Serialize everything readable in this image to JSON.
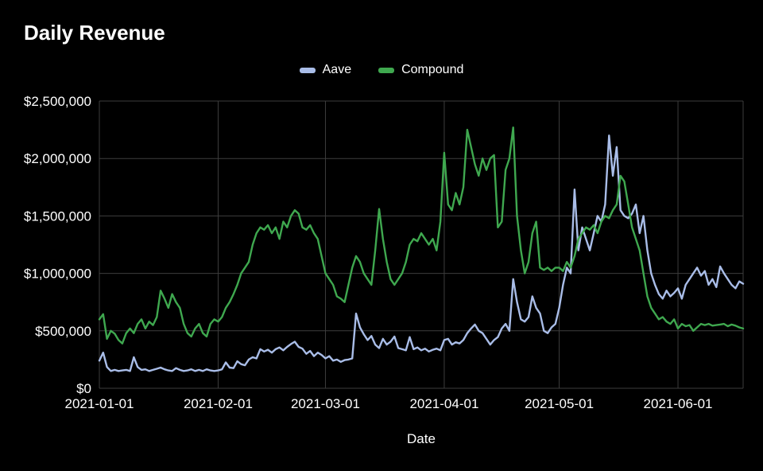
{
  "page": {
    "background": "#000000",
    "text_color": "#ffffff",
    "grid_color": "#3d3d3d"
  },
  "header": {
    "title": "Daily Revenue"
  },
  "axis": {
    "x_title": "Date"
  },
  "chart_data": {
    "type": "line",
    "title": "Daily Revenue",
    "xlabel": "Date",
    "ylabel": "",
    "start_date": "2021-01-01",
    "frequency": "daily",
    "ylim": [
      0,
      2500000
    ],
    "grid": true,
    "legend_position": "top-center",
    "y_ticks": [
      0,
      500000,
      1000000,
      1500000,
      2000000,
      2500000
    ],
    "y_tick_labels": [
      "$0",
      "$500,000",
      "$1,000,000",
      "$1,500,000",
      "$2,000,000",
      "$2,500,000"
    ],
    "x_ticks": [
      "2021-01-01",
      "2021-02-01",
      "2021-03-01",
      "2021-04-01",
      "2021-05-01",
      "2021-06-01"
    ],
    "series": [
      {
        "name": "Aave",
        "color": "#a9bde8",
        "values": [
          240000,
          310000,
          185000,
          150000,
          160000,
          150000,
          155000,
          160000,
          150000,
          270000,
          185000,
          160000,
          165000,
          150000,
          160000,
          170000,
          180000,
          165000,
          155000,
          150000,
          175000,
          160000,
          150000,
          155000,
          165000,
          150000,
          160000,
          150000,
          165000,
          155000,
          150000,
          155000,
          165000,
          225000,
          180000,
          175000,
          235000,
          210000,
          200000,
          250000,
          270000,
          260000,
          340000,
          320000,
          335000,
          310000,
          340000,
          355000,
          330000,
          360000,
          385000,
          405000,
          360000,
          345000,
          300000,
          325000,
          280000,
          310000,
          290000,
          260000,
          280000,
          240000,
          250000,
          230000,
          245000,
          250000,
          260000,
          650000,
          530000,
          470000,
          420000,
          455000,
          380000,
          350000,
          430000,
          380000,
          405000,
          450000,
          350000,
          340000,
          330000,
          445000,
          340000,
          355000,
          330000,
          345000,
          320000,
          335000,
          345000,
          330000,
          420000,
          430000,
          380000,
          400000,
          390000,
          420000,
          480000,
          520000,
          555000,
          500000,
          480000,
          430000,
          380000,
          420000,
          445000,
          520000,
          560000,
          500000,
          950000,
          750000,
          600000,
          580000,
          620000,
          800000,
          700000,
          650000,
          500000,
          480000,
          530000,
          560000,
          700000,
          900000,
          1050000,
          1000000,
          1730000,
          1200000,
          1400000,
          1300000,
          1200000,
          1350000,
          1500000,
          1450000,
          1600000,
          2200000,
          1850000,
          2100000,
          1550000,
          1500000,
          1480000,
          1520000,
          1600000,
          1350000,
          1500000,
          1200000,
          1000000,
          900000,
          820000,
          780000,
          850000,
          800000,
          830000,
          870000,
          780000,
          900000,
          950000,
          1000000,
          1050000,
          980000,
          1020000,
          900000,
          950000,
          880000,
          1060000,
          1000000,
          950000,
          900000,
          870000,
          930000,
          910000
        ]
      },
      {
        "name": "Compound",
        "color": "#3fa84f",
        "values": [
          600000,
          645000,
          430000,
          500000,
          475000,
          420000,
          390000,
          480000,
          520000,
          480000,
          560000,
          600000,
          520000,
          580000,
          550000,
          620000,
          850000,
          780000,
          700000,
          820000,
          750000,
          700000,
          560000,
          480000,
          450000,
          520000,
          560000,
          480000,
          450000,
          560000,
          600000,
          580000,
          620000,
          700000,
          750000,
          820000,
          900000,
          1000000,
          1050000,
          1100000,
          1250000,
          1350000,
          1400000,
          1380000,
          1420000,
          1350000,
          1400000,
          1300000,
          1450000,
          1400000,
          1500000,
          1550000,
          1520000,
          1400000,
          1380000,
          1420000,
          1350000,
          1300000,
          1150000,
          1000000,
          950000,
          900000,
          800000,
          780000,
          750000,
          900000,
          1050000,
          1150000,
          1100000,
          1000000,
          950000,
          900000,
          1200000,
          1560000,
          1300000,
          1100000,
          950000,
          900000,
          950000,
          1000000,
          1100000,
          1250000,
          1300000,
          1280000,
          1350000,
          1300000,
          1250000,
          1300000,
          1200000,
          1450000,
          2050000,
          1600000,
          1550000,
          1700000,
          1600000,
          1750000,
          2250000,
          2100000,
          1950000,
          1850000,
          2000000,
          1900000,
          2000000,
          2030000,
          1400000,
          1450000,
          1900000,
          2000000,
          2270000,
          1500000,
          1200000,
          1000000,
          1100000,
          1350000,
          1450000,
          1050000,
          1030000,
          1050000,
          1020000,
          1050000,
          1050000,
          1020000,
          1100000,
          1050000,
          1150000,
          1300000,
          1350000,
          1400000,
          1380000,
          1420000,
          1350000,
          1450000,
          1500000,
          1480000,
          1550000,
          1600000,
          1850000,
          1800000,
          1600000,
          1400000,
          1300000,
          1200000,
          1000000,
          800000,
          700000,
          650000,
          600000,
          620000,
          580000,
          560000,
          600000,
          520000,
          560000,
          540000,
          550000,
          500000,
          530000,
          560000,
          550000,
          560000,
          545000,
          550000,
          555000,
          560000,
          540000,
          555000,
          545000,
          530000,
          520000
        ]
      }
    ]
  }
}
